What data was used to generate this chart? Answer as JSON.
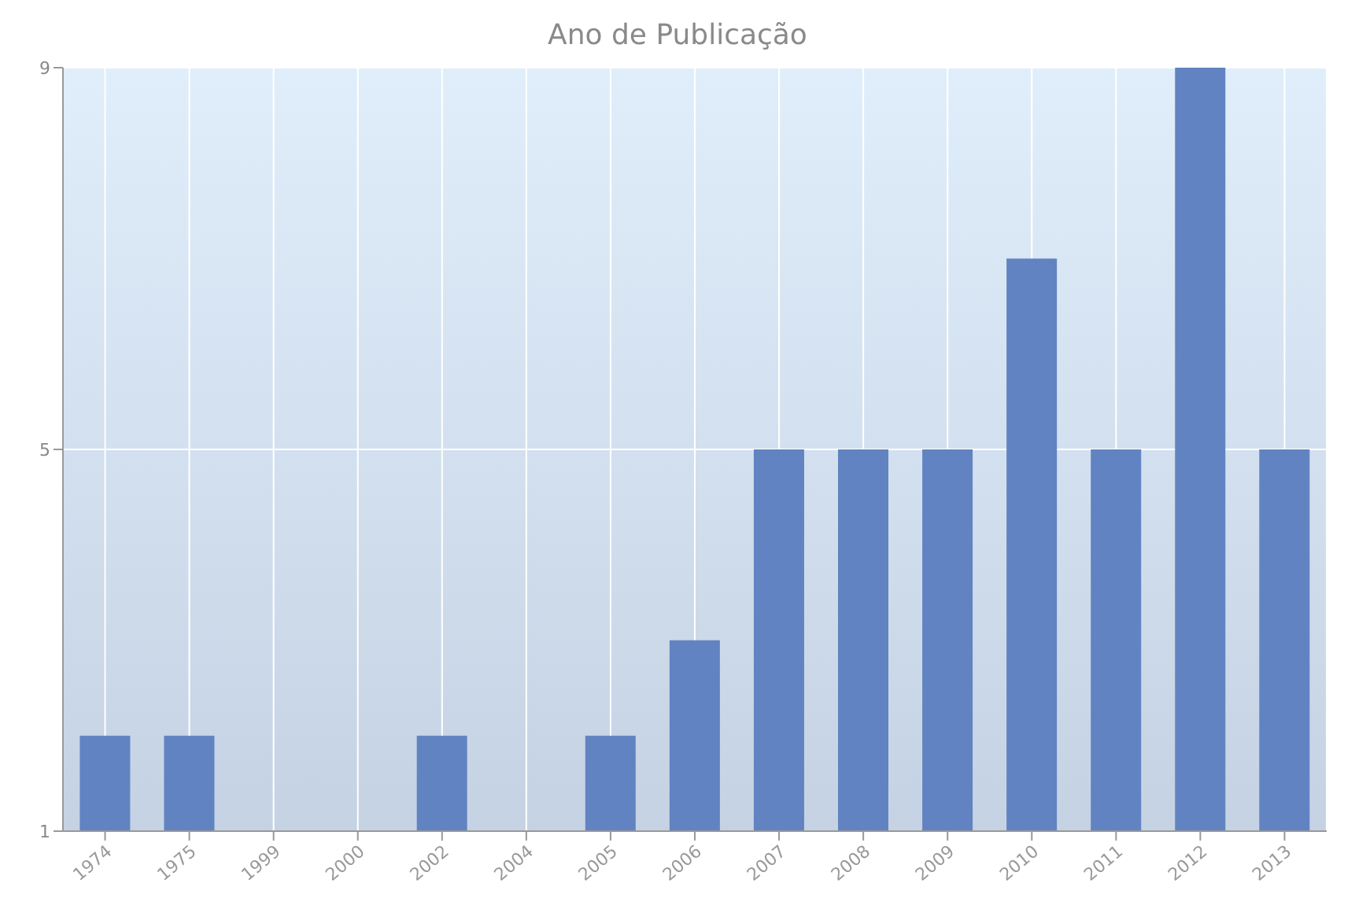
{
  "chart_data": {
    "type": "bar",
    "title": "Ano de Publicação",
    "categories": [
      "1974",
      "1975",
      "1999",
      "2000",
      "2002",
      "2004",
      "2005",
      "2006",
      "2007",
      "2008",
      "2009",
      "2010",
      "2011",
      "2012",
      "2013"
    ],
    "values": [
      2,
      2,
      1,
      1,
      2,
      1,
      2,
      3,
      5,
      5,
      5,
      7,
      5,
      9,
      5
    ],
    "color": "#6283c1",
    "ylim": [
      1,
      9
    ],
    "yticks": [
      1,
      5,
      9
    ],
    "grid": true,
    "legend": false
  }
}
